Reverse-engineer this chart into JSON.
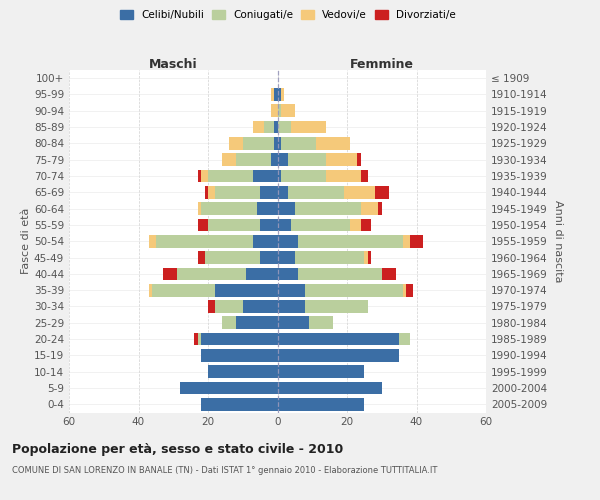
{
  "age_groups": [
    "0-4",
    "5-9",
    "10-14",
    "15-19",
    "20-24",
    "25-29",
    "30-34",
    "35-39",
    "40-44",
    "45-49",
    "50-54",
    "55-59",
    "60-64",
    "65-69",
    "70-74",
    "75-79",
    "80-84",
    "85-89",
    "90-94",
    "95-99",
    "100+"
  ],
  "birth_years": [
    "2005-2009",
    "2000-2004",
    "1995-1999",
    "1990-1994",
    "1985-1989",
    "1980-1984",
    "1975-1979",
    "1970-1974",
    "1965-1969",
    "1960-1964",
    "1955-1959",
    "1950-1954",
    "1945-1949",
    "1940-1944",
    "1935-1939",
    "1930-1934",
    "1925-1929",
    "1920-1924",
    "1915-1919",
    "1910-1914",
    "≤ 1909"
  ],
  "colors": {
    "celibi": "#3B6EA5",
    "coniugati": "#BACF9D",
    "vedovi": "#F5C97A",
    "divorziati": "#CC2020"
  },
  "maschi": {
    "celibi": [
      22,
      28,
      20,
      22,
      22,
      12,
      10,
      18,
      9,
      5,
      7,
      5,
      6,
      5,
      7,
      2,
      1,
      1,
      0,
      1,
      0
    ],
    "coniugati": [
      0,
      0,
      0,
      0,
      1,
      4,
      8,
      18,
      20,
      16,
      28,
      15,
      16,
      13,
      13,
      10,
      9,
      3,
      0,
      0,
      0
    ],
    "vedovi": [
      0,
      0,
      0,
      0,
      0,
      0,
      0,
      1,
      0,
      0,
      2,
      0,
      1,
      2,
      2,
      4,
      4,
      3,
      2,
      1,
      0
    ],
    "divorziati": [
      0,
      0,
      0,
      0,
      1,
      0,
      2,
      0,
      4,
      2,
      0,
      3,
      0,
      1,
      1,
      0,
      0,
      0,
      0,
      0,
      0
    ]
  },
  "femmine": {
    "celibi": [
      25,
      30,
      25,
      35,
      35,
      9,
      8,
      8,
      6,
      5,
      6,
      4,
      5,
      3,
      1,
      3,
      1,
      0,
      0,
      1,
      0
    ],
    "coniugati": [
      0,
      0,
      0,
      0,
      3,
      7,
      18,
      28,
      24,
      20,
      30,
      17,
      19,
      16,
      13,
      11,
      10,
      4,
      1,
      0,
      0
    ],
    "vedovi": [
      0,
      0,
      0,
      0,
      0,
      0,
      0,
      1,
      0,
      1,
      2,
      3,
      5,
      9,
      10,
      9,
      10,
      10,
      4,
      1,
      0
    ],
    "divorziati": [
      0,
      0,
      0,
      0,
      0,
      0,
      0,
      2,
      4,
      1,
      4,
      3,
      1,
      4,
      2,
      1,
      0,
      0,
      0,
      0,
      0
    ]
  },
  "xlim": 60,
  "title": "Popolazione per età, sesso e stato civile - 2010",
  "subtitle": "COMUNE DI SAN LORENZO IN BANALE (TN) - Dati ISTAT 1° gennaio 2010 - Elaborazione TUTTITALIA.IT",
  "ylabel_left": "Fasce di età",
  "ylabel_right": "Anni di nascita",
  "xlabel_maschi": "Maschi",
  "xlabel_femmine": "Femmine",
  "bg_color": "#f0f0f0",
  "plot_bg": "#ffffff",
  "grid_color": "#cccccc"
}
